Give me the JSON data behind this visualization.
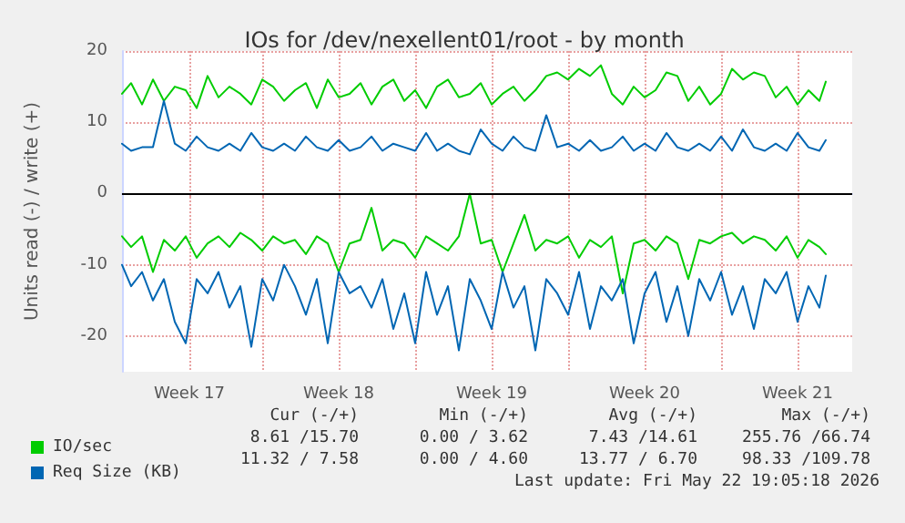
{
  "chart_data": {
    "type": "line",
    "title": "IOs for /dev/nexellent01/root - by month",
    "ylabel": "Units read (-) / write (+)",
    "x": [
      "2026-04-20T14:00",
      "2026-04-21T00:00",
      "2026-04-21T12:00",
      "2026-04-22T00:00",
      "2026-04-22T12:00",
      "2026-04-23T00:00",
      "2026-04-23T12:00",
      "2026-04-24T00:00",
      "2026-04-24T12:00",
      "2026-04-25T00:00",
      "2026-04-25T12:00",
      "2026-04-26T00:00",
      "2026-04-26T12:00",
      "2026-04-27T00:00",
      "2026-04-27T12:00",
      "2026-04-28T00:00",
      "2026-04-28T12:00",
      "2026-04-29T00:00",
      "2026-04-29T12:00",
      "2026-04-30T00:00",
      "2026-04-30T12:00",
      "2026-05-01T00:00",
      "2026-05-01T12:00",
      "2026-05-02T00:00",
      "2026-05-02T12:00",
      "2026-05-03T00:00",
      "2026-05-03T12:00",
      "2026-05-04T00:00",
      "2026-05-04T12:00",
      "2026-05-05T00:00",
      "2026-05-05T12:00",
      "2026-05-06T00:00",
      "2026-05-06T12:00",
      "2026-05-07T00:00",
      "2026-05-07T12:00",
      "2026-05-08T00:00",
      "2026-05-08T12:00",
      "2026-05-09T00:00",
      "2026-05-09T12:00",
      "2026-05-10T00:00",
      "2026-05-10T12:00",
      "2026-05-11T00:00",
      "2026-05-11T12:00",
      "2026-05-12T00:00",
      "2026-05-12T12:00",
      "2026-05-13T00:00",
      "2026-05-13T12:00",
      "2026-05-14T00:00",
      "2026-05-14T12:00",
      "2026-05-15T00:00",
      "2026-05-15T12:00",
      "2026-05-16T00:00",
      "2026-05-16T12:00",
      "2026-05-17T00:00",
      "2026-05-17T12:00",
      "2026-05-18T00:00",
      "2026-05-18T12:00",
      "2026-05-19T00:00",
      "2026-05-19T12:00",
      "2026-05-20T00:00",
      "2026-05-20T12:00",
      "2026-05-21T00:00",
      "2026-05-21T12:00",
      "2026-05-22T00:00",
      "2026-05-22T12:00",
      "2026-05-22T19:00"
    ],
    "series": [
      {
        "name": "IO/sec",
        "color": "#00cc00",
        "values": [
          14,
          15.5,
          12.5,
          16,
          13,
          15,
          14.5,
          12,
          16.5,
          13.5,
          15,
          14,
          12.5,
          16,
          15,
          13,
          14.5,
          15.5,
          12,
          16,
          13.5,
          14,
          15.5,
          12.5,
          15,
          16,
          13,
          14.5,
          12,
          15,
          16,
          13.5,
          14,
          15.5,
          12.5,
          14,
          15,
          13,
          14.5,
          16.5,
          17,
          16,
          17.5,
          16.5,
          18,
          14,
          12.5,
          15,
          13.5,
          14.5,
          17,
          16.5,
          13,
          15,
          12.5,
          14,
          17.5,
          16,
          17,
          16.5,
          13.5,
          15,
          12.5,
          14.5,
          13,
          15.7
        ]
      },
      {
        "color": "#00cc00",
        "values": [
          -6,
          -7.5,
          -6,
          -11,
          -6.5,
          -8,
          -6,
          -9,
          -7,
          -6,
          -7.5,
          -5.5,
          -6.5,
          -8,
          -6,
          -7,
          -6.5,
          -8.5,
          -6,
          -7,
          -11,
          -7,
          -6.5,
          -2,
          -8,
          -6.5,
          -7,
          -9,
          -6,
          -7,
          -8,
          -6,
          0,
          -7,
          -6.5,
          -11,
          -7,
          -3,
          -8,
          -6.5,
          -7,
          -6,
          -9,
          -6.5,
          -7.5,
          -6,
          -14,
          -7,
          -6.5,
          -8,
          -6,
          -7,
          -12,
          -6.5,
          -7,
          -6,
          -5.5,
          -7,
          -6,
          -6.5,
          -8,
          -6,
          -9,
          -6.5,
          -7.5,
          -8.5
        ]
      },
      {
        "name": "Req Size (KB)",
        "color": "#0066b3",
        "values": [
          7,
          6,
          6.5,
          6.5,
          13,
          7,
          6,
          8,
          6.5,
          6,
          7,
          6,
          8.5,
          6.5,
          6,
          7,
          6,
          8,
          6.5,
          6,
          7.5,
          6,
          6.5,
          8,
          6,
          7,
          6.5,
          6,
          8.5,
          6,
          7,
          6,
          5.5,
          9,
          7,
          6,
          8,
          6.5,
          6,
          11,
          6.5,
          7,
          6,
          7.5,
          6,
          6.5,
          8,
          6,
          7,
          6,
          8.5,
          6.5,
          6,
          7,
          6,
          8,
          6,
          9,
          6.5,
          6,
          7,
          6,
          8.5,
          6.5,
          6,
          7.5
        ]
      },
      {
        "color": "#0066b3",
        "values": [
          -10,
          -13,
          -11,
          -15,
          -12,
          -18,
          -21,
          -12,
          -14,
          -11,
          -16,
          -13,
          -21.5,
          -12,
          -15,
          -10,
          -13,
          -17,
          -12,
          -21,
          -11,
          -14,
          -13,
          -16,
          -12,
          -19,
          -14,
          -21,
          -11,
          -17,
          -13,
          -22,
          -12,
          -15,
          -19,
          -11,
          -16,
          -13,
          -22,
          -12,
          -14,
          -17,
          -11,
          -19,
          -13,
          -15,
          -12,
          -21,
          -14,
          -11,
          -18,
          -13,
          -20,
          -12,
          -15,
          -11,
          -17,
          -13,
          -19,
          -12,
          -14,
          -11,
          -18,
          -13,
          -16,
          -11.5
        ]
      }
    ],
    "xlim": [
      "2026-04-20T14:00",
      "2026-05-24T00:00"
    ],
    "xticks": [
      {
        "value": "2026-04-23T16:00",
        "label": "Week 17"
      },
      {
        "value": "2026-04-27T00:00",
        "label": null
      },
      {
        "value": "2026-04-30T12:00",
        "label": "Week 18"
      },
      {
        "value": "2026-05-04T00:00",
        "label": null
      },
      {
        "value": "2026-05-07T12:00",
        "label": "Week 19"
      },
      {
        "value": "2026-05-11T00:00",
        "label": null
      },
      {
        "value": "2026-05-14T12:00",
        "label": "Week 20"
      },
      {
        "value": "2026-05-18T00:00",
        "label": null
      },
      {
        "value": "2026-05-21T12:00",
        "label": "Week 21"
      }
    ],
    "ylim": [
      -25,
      20
    ],
    "yticks": [
      -20,
      -10,
      0,
      10,
      20
    ],
    "ref_lines": [
      {
        "axis": "y",
        "value": 0,
        "color": "#000000"
      }
    ],
    "grid": true,
    "legend": "bottom left",
    "marker": "none",
    "line_style": "solid",
    "annotations": [
      "Cur (-/+)",
      "Min (-/+)",
      "Avg (-/+)",
      "Max (-/+)",
      "8.61 /15.70",
      "0.00 / 3.62",
      "7.43 /14.61",
      "255.76 /66.74",
      "11.32 / 7.58",
      "0.00 / 4.60",
      "13.77 / 6.70",
      "98.33 /109.78",
      "Last update: Fri May 22 19:05:18 2026"
    ]
  }
}
